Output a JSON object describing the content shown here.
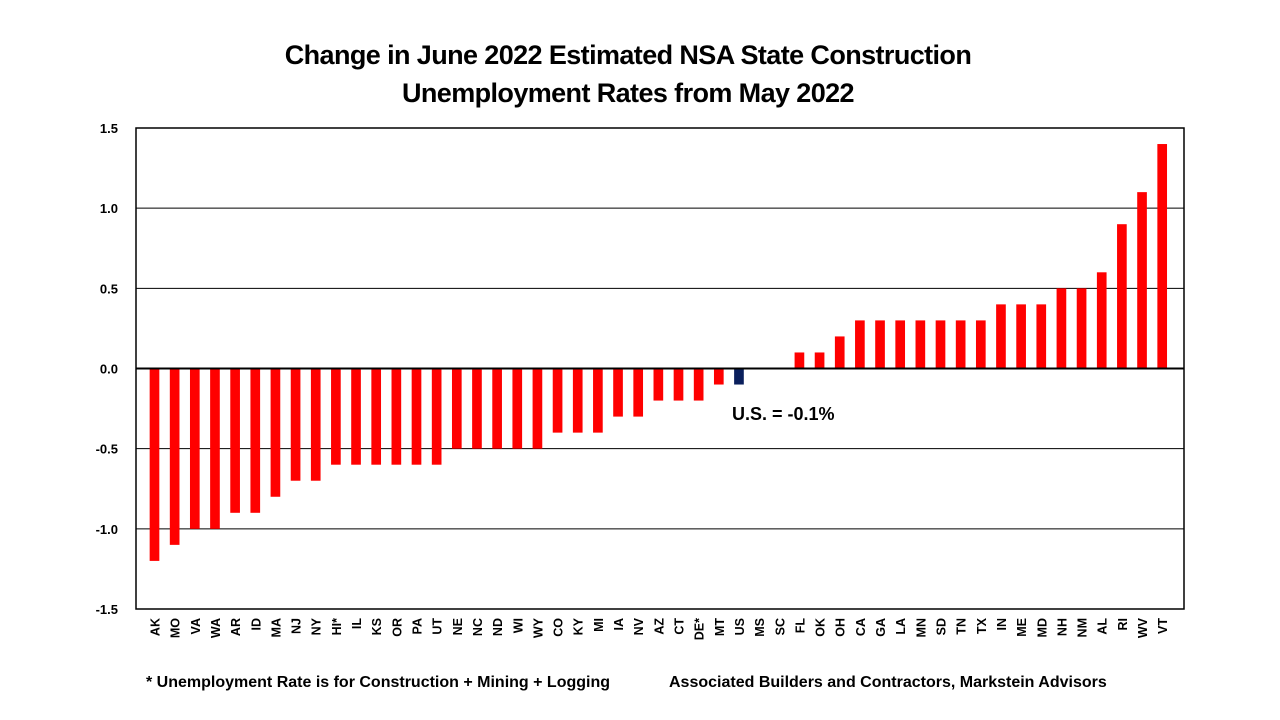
{
  "chart_data": {
    "type": "bar",
    "title": "Change in June 2022 Estimated NSA State Construction Unemployment Rates from May 2022",
    "title_lines": [
      "Change in June 2022 Estimated NSA State Construction",
      "Unemployment Rates from May 2022"
    ],
    "xlabel": "",
    "ylabel": "",
    "ylim": [
      -1.5,
      1.5
    ],
    "yticks": [
      1.5,
      1.0,
      0.5,
      0.0,
      -0.5,
      -1.0,
      -1.5
    ],
    "ytick_labels": [
      "1.5",
      "1.0",
      "0.5",
      "0.0",
      "-0.5",
      "-1.0",
      "-1.5"
    ],
    "grid": "horizontal",
    "categories": [
      "AK",
      "MO",
      "VA",
      "WA",
      "AR",
      "ID",
      "MA",
      "NJ",
      "NY",
      "HI*",
      "IL",
      "KS",
      "OR",
      "PA",
      "UT",
      "NE",
      "NC",
      "ND",
      "WI",
      "WY",
      "CO",
      "KY",
      "MI",
      "IA",
      "NV",
      "AZ",
      "CT",
      "DE*",
      "MT",
      "US",
      "MS",
      "SC",
      "FL",
      "OK",
      "OH",
      "CA",
      "GA",
      "LA",
      "MN",
      "SD",
      "TN",
      "TX",
      "IN",
      "ME",
      "MD",
      "NH",
      "NM",
      "AL",
      "RI",
      "WV",
      "VT"
    ],
    "values": [
      -1.2,
      -1.1,
      -1.0,
      -1.0,
      -0.9,
      -0.9,
      -0.8,
      -0.7,
      -0.7,
      -0.6,
      -0.6,
      -0.6,
      -0.6,
      -0.6,
      -0.6,
      -0.5,
      -0.5,
      -0.5,
      -0.5,
      -0.5,
      -0.4,
      -0.4,
      -0.4,
      -0.3,
      -0.3,
      -0.2,
      -0.2,
      -0.2,
      -0.1,
      -0.1,
      0.0,
      0.0,
      0.1,
      0.1,
      0.2,
      0.3,
      0.3,
      0.3,
      0.3,
      0.3,
      0.3,
      0.3,
      0.4,
      0.4,
      0.4,
      0.5,
      0.5,
      0.6,
      0.9,
      1.1,
      1.4
    ],
    "highlight_category": "US",
    "colors": {
      "default": "#ff0000",
      "highlight": "#0a1f5c"
    },
    "annotation": "U.S. = -0.1%",
    "legend": "none"
  },
  "footnotes": {
    "left": "* Unemployment Rate is for Construction + Mining + Logging",
    "right": "Associated Builders and Contractors, Markstein Advisors"
  }
}
